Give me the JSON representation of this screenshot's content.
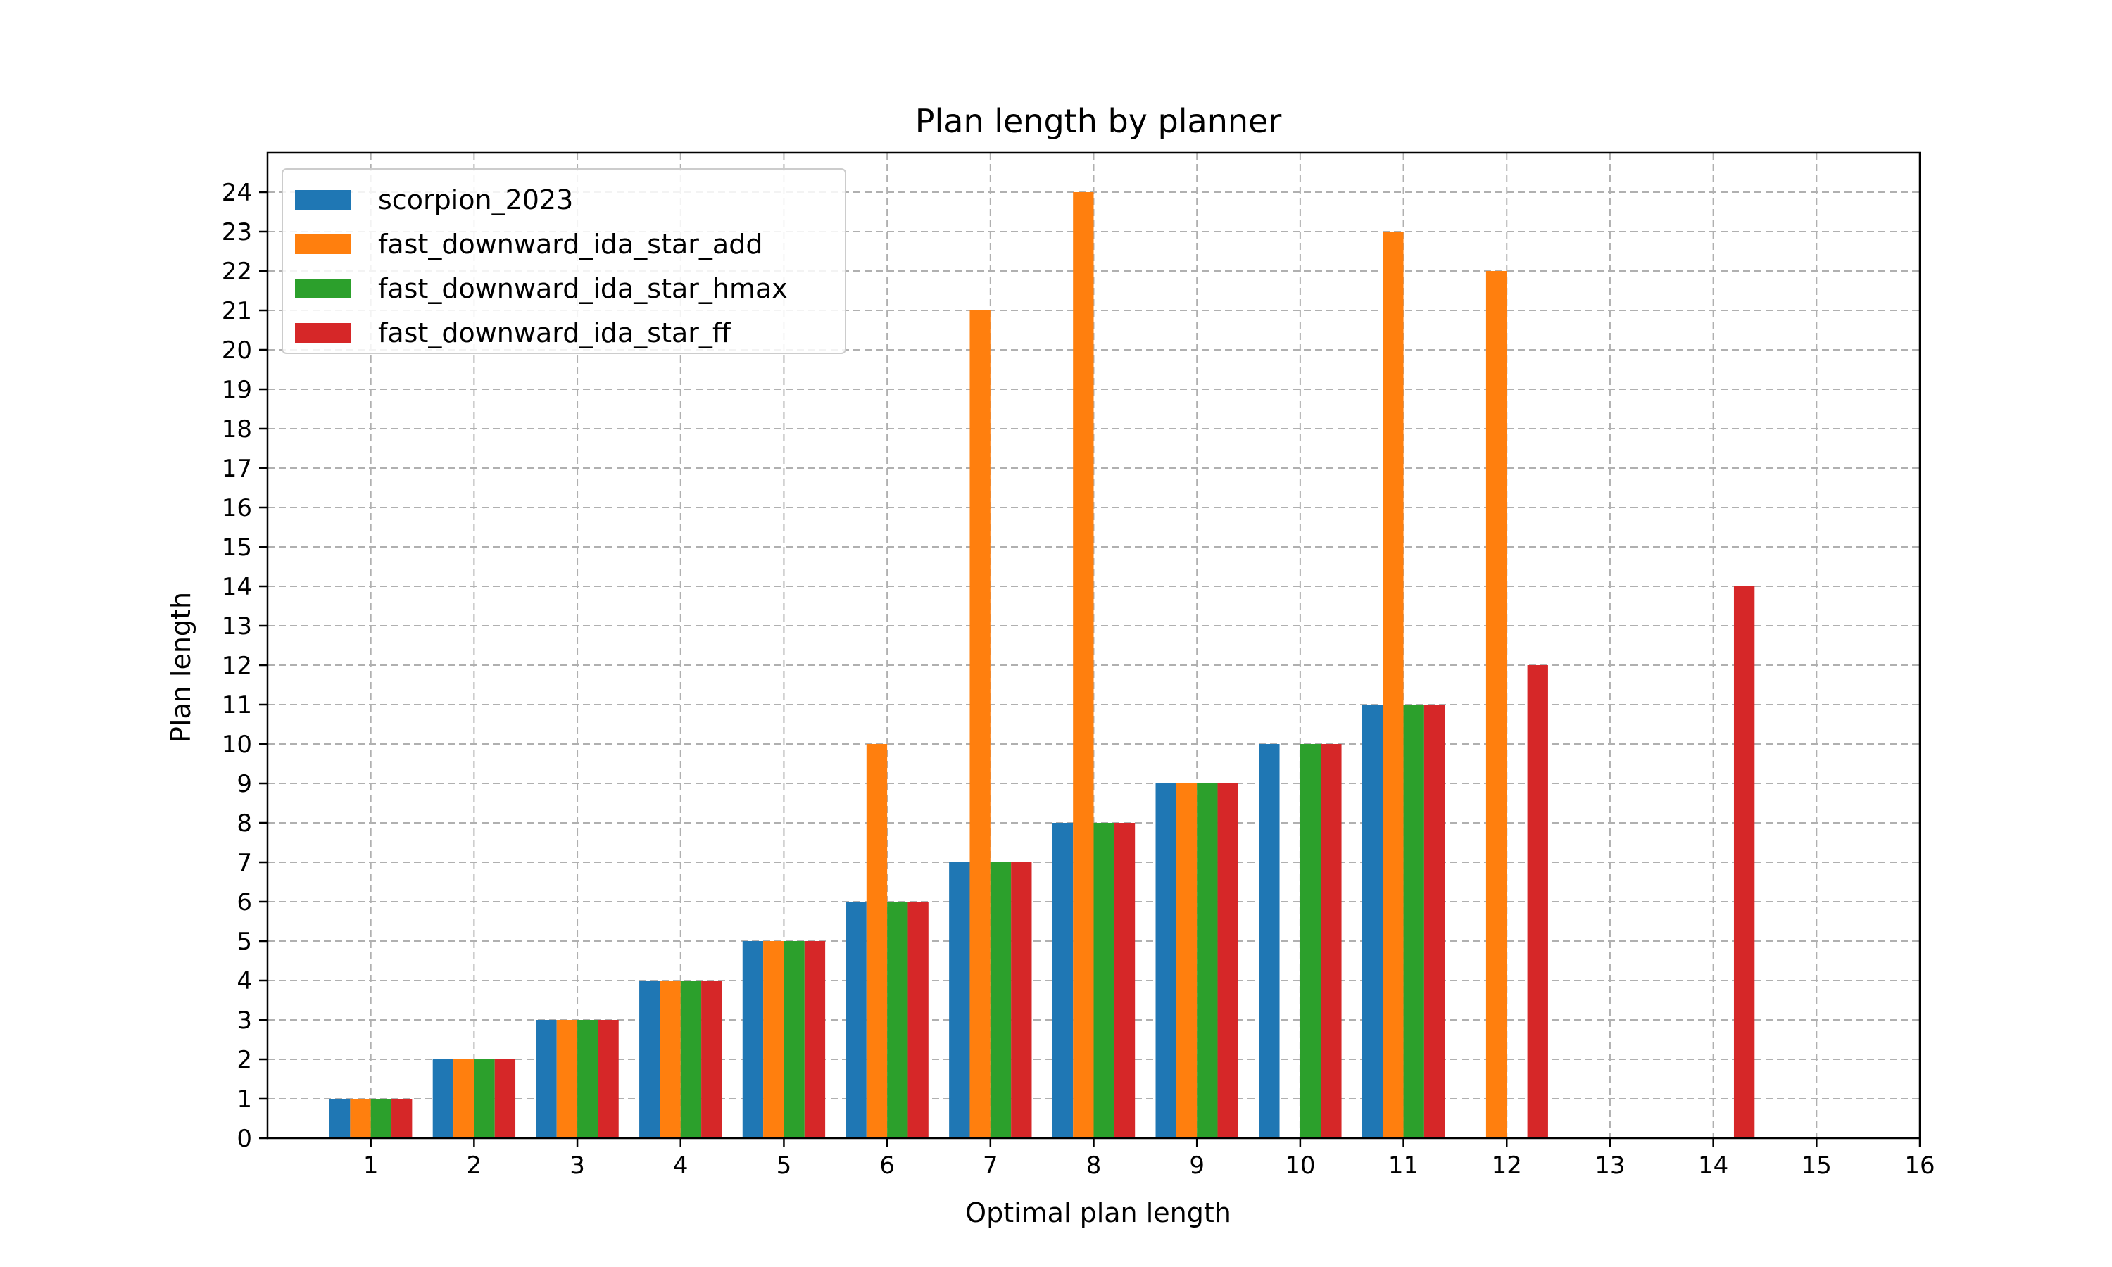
{
  "chart_data": {
    "type": "bar",
    "title": "Plan length by planner",
    "xlabel": "Optimal plan length",
    "ylabel": "Plan length",
    "categories": [
      1,
      2,
      3,
      4,
      5,
      6,
      7,
      8,
      9,
      10,
      11,
      12,
      13,
      14,
      15,
      16
    ],
    "xlim": [
      0,
      16
    ],
    "ylim": [
      0,
      25
    ],
    "yticks": [
      0,
      1,
      2,
      3,
      4,
      5,
      6,
      7,
      8,
      9,
      10,
      11,
      12,
      13,
      14,
      15,
      16,
      17,
      18,
      19,
      20,
      21,
      22,
      23,
      24
    ],
    "grid": true,
    "legend_position": "top-left",
    "series": [
      {
        "name": "scorpion_2023",
        "color": "#1f77b4",
        "values": [
          1,
          2,
          3,
          4,
          5,
          6,
          7,
          8,
          9,
          10,
          11,
          null,
          null,
          null,
          null,
          null
        ]
      },
      {
        "name": "fast_downward_ida_star_add",
        "color": "#ff7f0e",
        "values": [
          1,
          2,
          3,
          4,
          5,
          10,
          21,
          24,
          9,
          null,
          23,
          22,
          null,
          null,
          null,
          null
        ]
      },
      {
        "name": "fast_downward_ida_star_hmax",
        "color": "#2ca02c",
        "values": [
          1,
          2,
          3,
          4,
          5,
          6,
          7,
          8,
          9,
          10,
          11,
          null,
          null,
          null,
          null,
          null
        ]
      },
      {
        "name": "fast_downward_ida_star_ff",
        "color": "#d62728",
        "values": [
          1,
          2,
          3,
          4,
          5,
          6,
          7,
          8,
          9,
          10,
          11,
          12,
          null,
          14,
          null,
          null
        ]
      }
    ]
  }
}
